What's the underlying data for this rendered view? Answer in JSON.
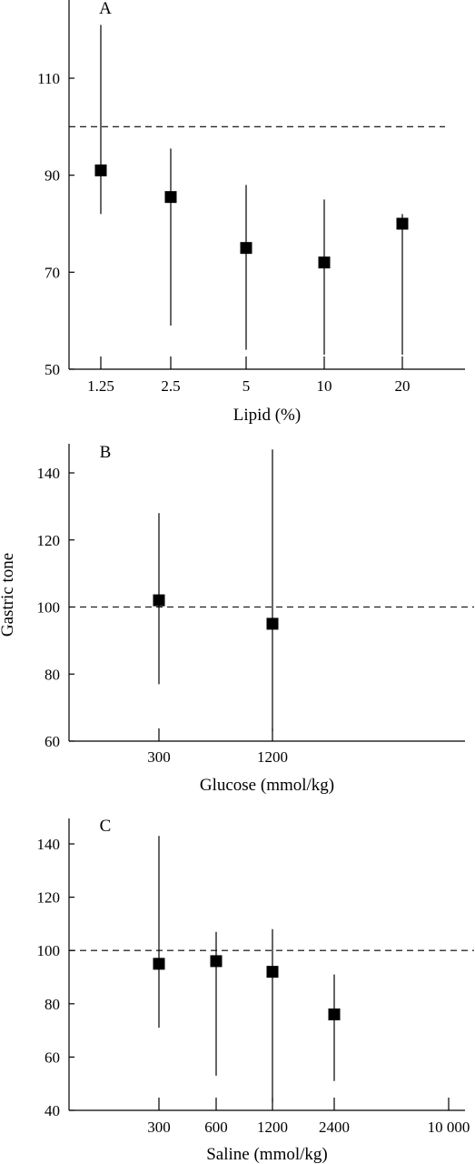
{
  "figure": {
    "shared_ylabel": "Gastric tone"
  },
  "chart_data": [
    {
      "type": "scatter",
      "panel_label": "A",
      "xlabel": "Lipid (%)",
      "ylabel": "Gastric tone",
      "categories": [
        "1.25",
        "2.5",
        "5",
        "10",
        "20"
      ],
      "values": [
        91,
        85.5,
        75,
        72,
        80
      ],
      "error_low": [
        82,
        59,
        54,
        53,
        53
      ],
      "error_high": [
        121,
        95.5,
        88,
        85,
        82
      ],
      "yticks": [
        50,
        70,
        90,
        110
      ],
      "ylim": [
        50,
        120
      ],
      "reference_line": 100,
      "grid": false
    },
    {
      "type": "scatter",
      "panel_label": "B",
      "xlabel": "Glucose (mmol/kg)",
      "ylabel": "Gastric tone",
      "categories": [
        "300",
        "1200"
      ],
      "values": [
        102,
        95
      ],
      "error_low": [
        77,
        63
      ],
      "error_high": [
        128,
        147
      ],
      "yticks": [
        60,
        80,
        100,
        120,
        140
      ],
      "ylim": [
        60,
        150
      ],
      "reference_line": 100,
      "grid": false
    },
    {
      "type": "scatter",
      "panel_label": "C",
      "xlabel": "Saline (mmol/kg)",
      "ylabel": "Gastric tone",
      "categories": [
        "300",
        "600",
        "1200",
        "2400",
        "10 000"
      ],
      "values": [
        95,
        96,
        92,
        76,
        null
      ],
      "error_low": [
        71,
        53,
        43,
        51,
        null
      ],
      "error_high": [
        143,
        107,
        108,
        91,
        null
      ],
      "yticks": [
        40,
        60,
        80,
        100,
        120,
        140
      ],
      "ylim": [
        40,
        150
      ],
      "reference_line": 100,
      "grid": false
    }
  ]
}
